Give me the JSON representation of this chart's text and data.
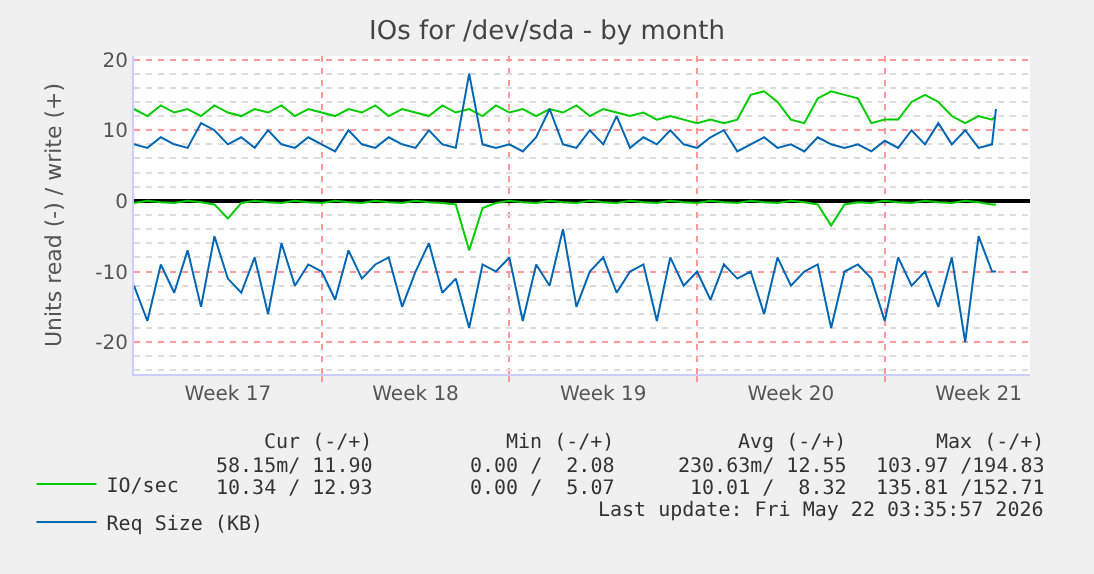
{
  "chart_data": {
    "type": "line",
    "title": "IOs for /dev/sda - by month",
    "ylabel": "Units read (-) / write (+)",
    "x": [
      "2026-04-20T00:00",
      "2026-04-20T12:00",
      "2026-04-21T00:00",
      "2026-04-21T12:00",
      "2026-04-22T00:00",
      "2026-04-22T12:00",
      "2026-04-23T00:00",
      "2026-04-23T12:00",
      "2026-04-24T00:00",
      "2026-04-24T12:00",
      "2026-04-25T00:00",
      "2026-04-25T12:00",
      "2026-04-26T00:00",
      "2026-04-26T12:00",
      "2026-04-27T00:00",
      "2026-04-27T12:00",
      "2026-04-28T00:00",
      "2026-04-28T12:00",
      "2026-04-29T00:00",
      "2026-04-29T12:00",
      "2026-04-30T00:00",
      "2026-04-30T12:00",
      "2026-05-01T00:00",
      "2026-05-01T12:00",
      "2026-05-02T00:00",
      "2026-05-02T12:00",
      "2026-05-03T00:00",
      "2026-05-03T12:00",
      "2026-05-04T00:00",
      "2026-05-04T12:00",
      "2026-05-05T00:00",
      "2026-05-05T12:00",
      "2026-05-06T00:00",
      "2026-05-06T12:00",
      "2026-05-07T00:00",
      "2026-05-07T12:00",
      "2026-05-08T00:00",
      "2026-05-08T12:00",
      "2026-05-09T00:00",
      "2026-05-09T12:00",
      "2026-05-10T00:00",
      "2026-05-10T12:00",
      "2026-05-11T00:00",
      "2026-05-11T12:00",
      "2026-05-12T00:00",
      "2026-05-12T12:00",
      "2026-05-13T00:00",
      "2026-05-13T12:00",
      "2026-05-14T00:00",
      "2026-05-14T12:00",
      "2026-05-15T00:00",
      "2026-05-15T12:00",
      "2026-05-16T00:00",
      "2026-05-16T12:00",
      "2026-05-17T00:00",
      "2026-05-17T12:00",
      "2026-05-18T00:00",
      "2026-05-18T12:00",
      "2026-05-19T00:00",
      "2026-05-19T12:00",
      "2026-05-20T00:00",
      "2026-05-20T12:00",
      "2026-05-21T00:00",
      "2026-05-21T12:00",
      "2026-05-22T00:00",
      "2026-05-22T03:30"
    ],
    "series": [
      {
        "name": "IO/sec",
        "color": "#00cc00",
        "values": [
          13,
          12,
          13.5,
          12.5,
          13,
          12,
          13.5,
          12.5,
          12,
          13,
          12.5,
          13.5,
          12,
          13,
          12.5,
          12,
          13,
          12.5,
          13.5,
          12,
          13,
          12.5,
          12,
          13.5,
          12.5,
          13,
          12,
          13.5,
          12.5,
          13,
          12,
          13,
          12.5,
          13.5,
          12,
          13,
          12.5,
          12,
          12.5,
          11.5,
          12,
          11.5,
          11,
          11.5,
          11,
          11.5,
          15,
          15.5,
          14,
          11.5,
          11,
          14.5,
          15.5,
          15,
          14.5,
          11,
          11.5,
          11.5,
          14,
          15,
          14,
          12,
          11,
          12,
          11.5,
          12
        ]
      },
      {
        "color": "#00cc00",
        "values": [
          -0.3,
          0,
          -0.2,
          -0.3,
          0,
          -0.2,
          -0.5,
          -2.5,
          -0.3,
          0,
          -0.2,
          -0.3,
          0,
          -0.2,
          -0.3,
          0,
          -0.2,
          -0.3,
          0,
          -0.2,
          -0.3,
          0,
          -0.2,
          -0.3,
          -0.5,
          -7,
          -1,
          -0.3,
          0,
          -0.2,
          -0.3,
          0,
          -0.2,
          -0.3,
          0,
          -0.2,
          -0.3,
          0,
          -0.2,
          -0.3,
          0,
          -0.2,
          -0.3,
          0,
          -0.2,
          -0.3,
          0,
          -0.2,
          -0.3,
          0,
          -0.2,
          -0.5,
          -3.5,
          -0.5,
          -0.2,
          -0.3,
          0,
          -0.2,
          -0.3,
          0,
          -0.2,
          -0.3,
          0,
          -0.2,
          -0.5,
          -0.5
        ]
      },
      {
        "name": "Req Size (KB)",
        "color": "#0066b3",
        "values": [
          8,
          7.5,
          9,
          8,
          7.5,
          11,
          10,
          8,
          9,
          7.5,
          10,
          8,
          7.5,
          9,
          8,
          7,
          10,
          8,
          7.5,
          9,
          8,
          7.5,
          10,
          8,
          7.5,
          18,
          8,
          7.5,
          8,
          7,
          9,
          13,
          8,
          7.5,
          10,
          8,
          12,
          7.5,
          9,
          8,
          10,
          8,
          7.5,
          9,
          10,
          7,
          8,
          9,
          7.5,
          8,
          7,
          9,
          8,
          7.5,
          8,
          7,
          8.5,
          7.5,
          10,
          8,
          11,
          8,
          10,
          7.5,
          8,
          13
        ]
      },
      {
        "color": "#0066b3",
        "values": [
          -12,
          -17,
          -9,
          -13,
          -7,
          -15,
          -5,
          -11,
          -13,
          -8,
          -16,
          -6,
          -12,
          -9,
          -10,
          -14,
          -7,
          -11,
          -9,
          -8,
          -15,
          -10,
          -6,
          -13,
          -11,
          -18,
          -9,
          -10,
          -8,
          -17,
          -9,
          -12,
          -4,
          -15,
          -10,
          -8,
          -13,
          -10,
          -9,
          -17,
          -8,
          -12,
          -10,
          -14,
          -9,
          -11,
          -10,
          -16,
          -8,
          -12,
          -10,
          -9,
          -18,
          -10,
          -9,
          -11,
          -17,
          -8,
          -12,
          -10,
          -15,
          -8,
          -20,
          -5,
          -10,
          -10
        ]
      }
    ],
    "xlim": [
      "2026-04-20T00:00",
      "2026-05-23T10:00"
    ],
    "xticks": [
      {
        "value": "2026-04-23T12:00",
        "label": "Week 17"
      },
      {
        "value": "2026-04-27T00:00",
        "label": null
      },
      {
        "value": "2026-04-30T12:00",
        "label": "Week 18"
      },
      {
        "value": "2026-05-04T00:00",
        "label": null
      },
      {
        "value": "2026-05-07T12:00",
        "label": "Week 19"
      },
      {
        "value": "2026-05-11T00:00",
        "label": null
      },
      {
        "value": "2026-05-14T12:00",
        "label": "Week 20"
      },
      {
        "value": "2026-05-18T00:00",
        "label": null
      },
      {
        "value": "2026-05-21T12:00",
        "label": "Week 21"
      }
    ],
    "ylim": [
      -24.5,
      20.5
    ],
    "yticks": [
      -20,
      -10,
      0,
      10,
      20
    ],
    "grid": true,
    "legend": "bottom left",
    "annotations": [
      "Cur (-/+)",
      "Min (-/+)",
      "Avg (-/+)",
      "Max (-/+)",
      "58.15m/ 11.90",
      "0.00 /  2.08",
      "230.63m/ 12.55",
      "103.97 /194.83",
      "10.34 / 12.93",
      "0.00 /  5.07",
      "10.01 /  8.32",
      "135.81 /152.71",
      "Last update: Fri May 22 03:35:57 2026"
    ]
  }
}
